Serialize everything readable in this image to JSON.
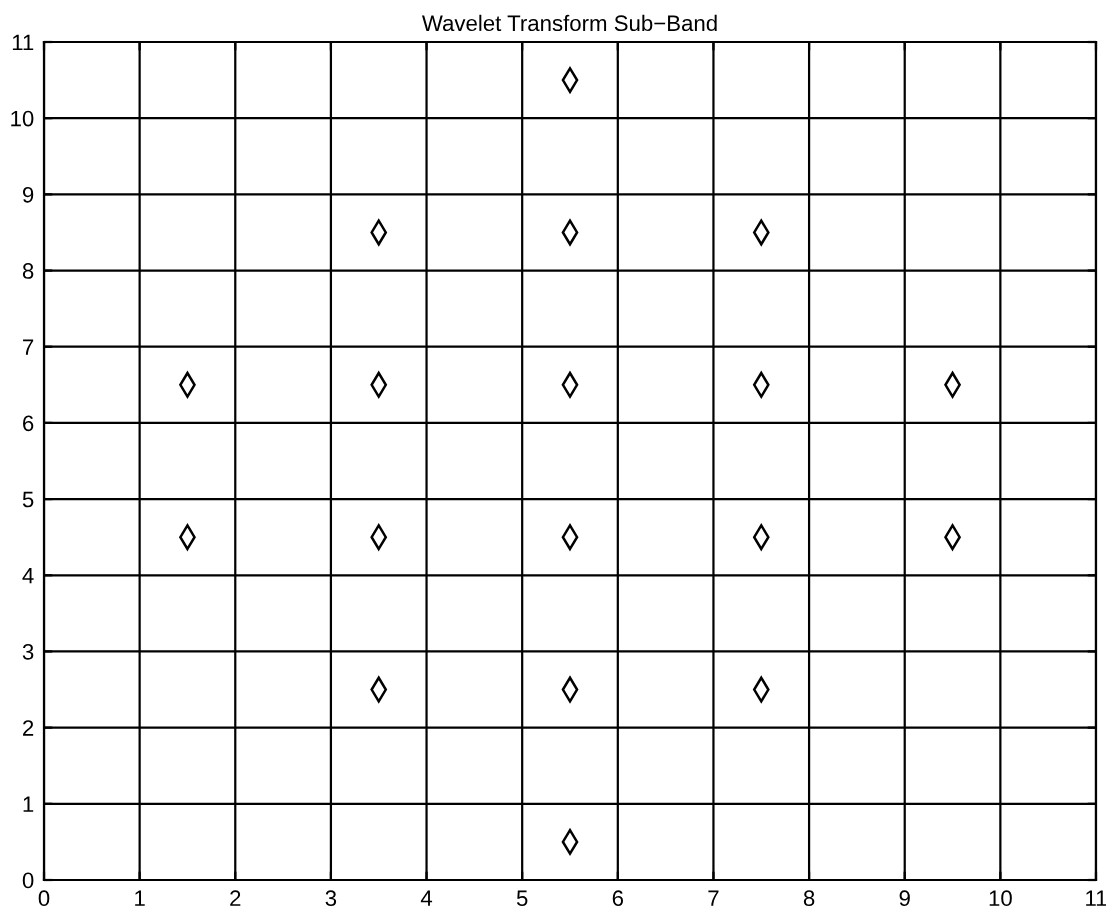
{
  "chart_data": {
    "type": "scatter",
    "title": "Wavelet Transform Sub−Band",
    "x": [
      5.5,
      3.5,
      5.5,
      7.5,
      1.5,
      3.5,
      5.5,
      7.5,
      9.5,
      1.5,
      3.5,
      5.5,
      7.5,
      9.5,
      3.5,
      5.5,
      7.5,
      5.5
    ],
    "series": [
      {
        "color": "#000000",
        "values": [
          10.5,
          8.5,
          8.5,
          8.5,
          6.5,
          6.5,
          6.5,
          6.5,
          6.5,
          4.5,
          4.5,
          4.5,
          4.5,
          4.5,
          2.5,
          2.5,
          2.5,
          0.5
        ]
      }
    ],
    "xlim": [
      0,
      11
    ],
    "ylim": [
      0,
      11
    ],
    "xticks": [
      0,
      1,
      2,
      3,
      4,
      5,
      6,
      7,
      8,
      9,
      10,
      11
    ],
    "yticks": [
      0,
      1,
      2,
      3,
      4,
      5,
      6,
      7,
      8,
      9,
      10,
      11
    ],
    "grid": true,
    "marker": "diamond"
  }
}
